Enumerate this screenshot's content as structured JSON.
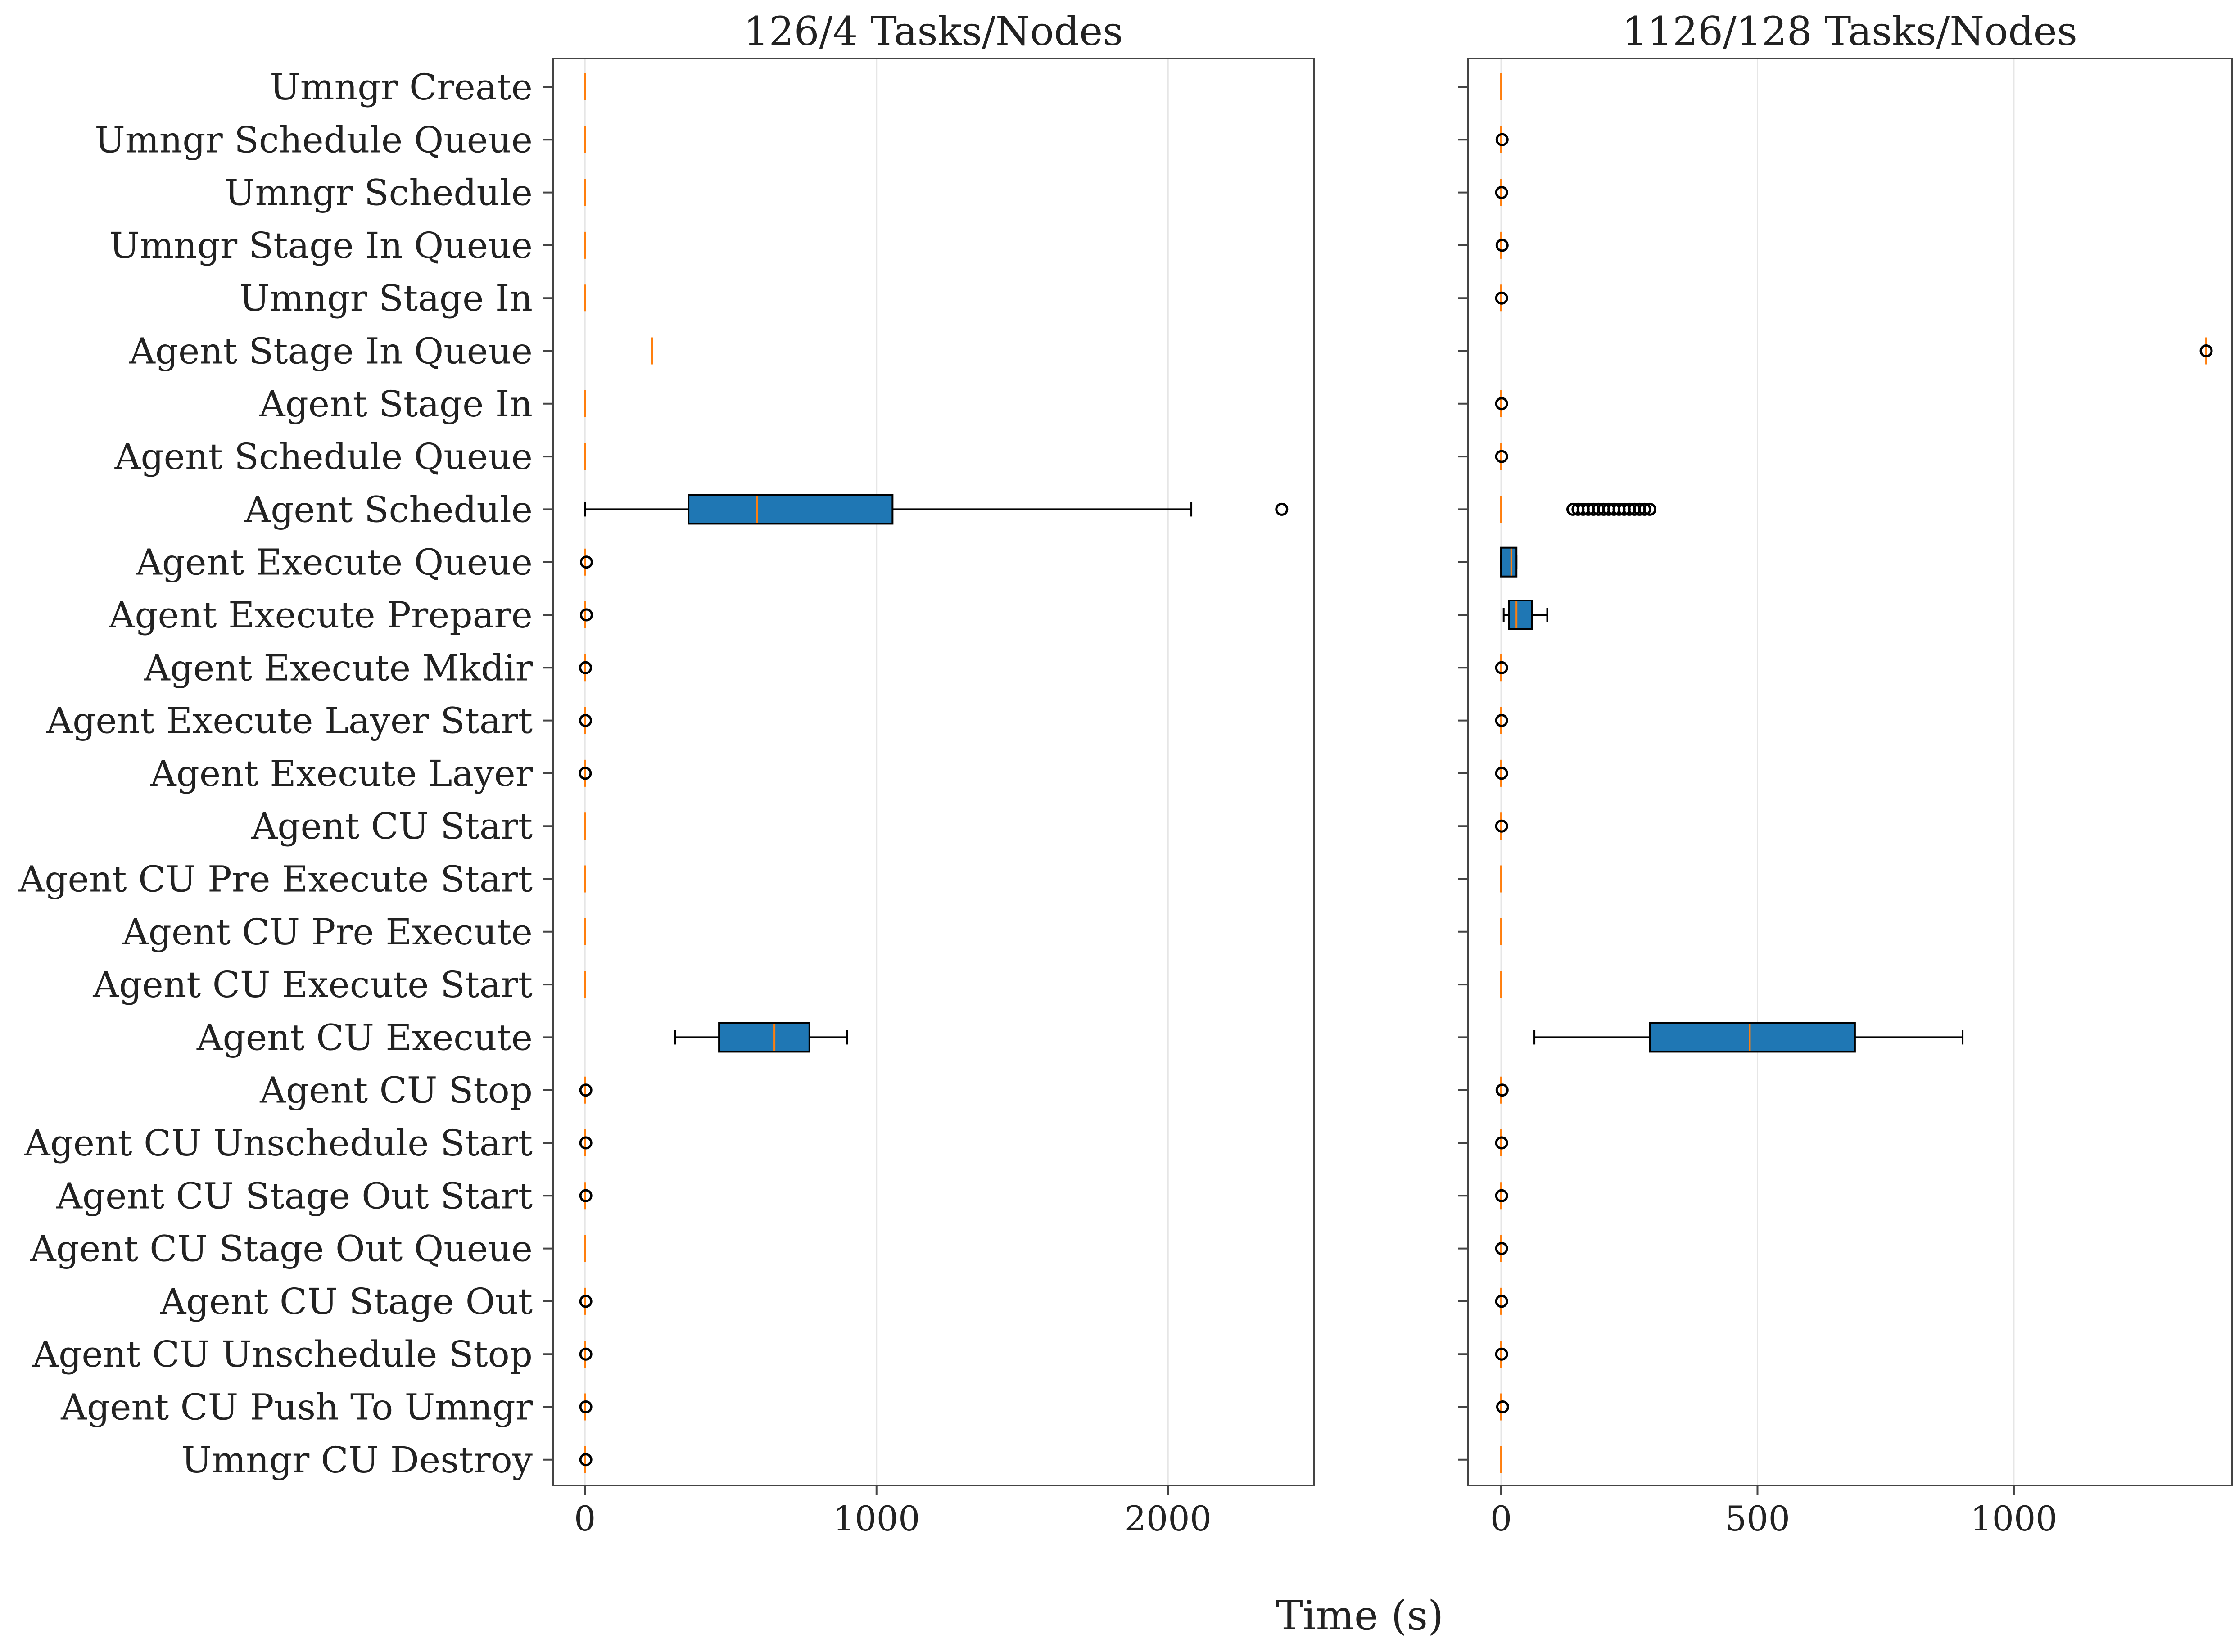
{
  "chart_data": {
    "type": "box",
    "xlabel": "Time (s)",
    "categories": [
      "Umngr Create",
      "Umngr Schedule Queue",
      "Umngr Schedule",
      "Umngr Stage In Queue",
      "Umngr Stage In",
      "Agent Stage In Queue",
      "Agent Stage In",
      "Agent Schedule Queue",
      "Agent Schedule",
      "Agent Execute Queue",
      "Agent Execute Prepare",
      "Agent Execute Mkdir",
      "Agent Execute Layer Start",
      "Agent Execute Layer",
      "Agent CU Start",
      "Agent CU Pre Execute Start",
      "Agent CU Pre Execute",
      "Agent CU Execute Start",
      "Agent CU Execute",
      "Agent CU Stop",
      "Agent CU Unschedule Start",
      "Agent CU Stage Out Start",
      "Agent CU Stage Out Queue",
      "Agent CU Stage Out",
      "Agent CU Unschedule Stop",
      "Agent CU Push To Umngr",
      "Umngr CU Destroy"
    ],
    "colors": {
      "box_fill": "#1f77b4",
      "median": "#ff7f0e",
      "outline": "#000000",
      "grid": "#e6e6e6",
      "frame": "#444444"
    },
    "panels": [
      {
        "title": "126/4 Tasks/Nodes",
        "xlim": [
          -110,
          2500
        ],
        "xticks": [
          0,
          1000,
          2000
        ],
        "grid": true,
        "boxes": [
          {
            "wlo": 1,
            "q1": 1,
            "med": 1,
            "q3": 1,
            "whi": 1,
            "outliers": []
          },
          {
            "wlo": 0.5,
            "q1": 0.5,
            "med": 0.5,
            "q3": 0.5,
            "whi": 0.5,
            "outliers": []
          },
          {
            "wlo": 0.5,
            "q1": 0.5,
            "med": 0.5,
            "q3": 0.5,
            "whi": 0.5,
            "outliers": []
          },
          {
            "wlo": 0,
            "q1": 0,
            "med": 0,
            "q3": 0,
            "whi": 0,
            "outliers": []
          },
          {
            "wlo": 0,
            "q1": 0,
            "med": 0,
            "q3": 0,
            "whi": 0,
            "outliers": []
          },
          {
            "wlo": 230,
            "q1": 230,
            "med": 230,
            "q3": 230,
            "whi": 230,
            "outliers": []
          },
          {
            "wlo": 0,
            "q1": 0,
            "med": 0,
            "q3": 0,
            "whi": 0,
            "outliers": []
          },
          {
            "wlo": 0,
            "q1": 0,
            "med": 0,
            "q3": 0,
            "whi": 0,
            "outliers": []
          },
          {
            "wlo": 0,
            "q1": 355,
            "med": 590,
            "q3": 1055,
            "whi": 2080,
            "outliers": [
              2390
            ]
          },
          {
            "wlo": 0,
            "q1": 0,
            "med": 0,
            "q3": 0,
            "whi": 0,
            "outliers": [
              5
            ]
          },
          {
            "wlo": 0,
            "q1": 0,
            "med": 0,
            "q3": 0,
            "whi": 0,
            "outliers": [
              5
            ]
          },
          {
            "wlo": 0,
            "q1": 0,
            "med": 0,
            "q3": 0,
            "whi": 0,
            "outliers": [
              2
            ]
          },
          {
            "wlo": 0,
            "q1": 0,
            "med": 0,
            "q3": 0,
            "whi": 0,
            "outliers": [
              2
            ]
          },
          {
            "wlo": 0,
            "q1": 0,
            "med": 0,
            "q3": 0,
            "whi": 0,
            "outliers": [
              1
            ]
          },
          {
            "wlo": 0,
            "q1": 0,
            "med": 0,
            "q3": 0,
            "whi": 0,
            "outliers": []
          },
          {
            "wlo": 0,
            "q1": 0,
            "med": 0,
            "q3": 0,
            "whi": 0,
            "outliers": []
          },
          {
            "wlo": 0,
            "q1": 0,
            "med": 0,
            "q3": 0,
            "whi": 0,
            "outliers": []
          },
          {
            "wlo": 0,
            "q1": 0,
            "med": 0,
            "q3": 0,
            "whi": 0,
            "outliers": []
          },
          {
            "wlo": 310,
            "q1": 460,
            "med": 650,
            "q3": 770,
            "whi": 900,
            "outliers": []
          },
          {
            "wlo": 0,
            "q1": 0,
            "med": 0,
            "q3": 0,
            "whi": 0,
            "outliers": [
              3
            ]
          },
          {
            "wlo": 0,
            "q1": 0,
            "med": 0,
            "q3": 0,
            "whi": 0,
            "outliers": [
              3
            ]
          },
          {
            "wlo": 0,
            "q1": 0,
            "med": 0,
            "q3": 0,
            "whi": 0,
            "outliers": [
              3
            ]
          },
          {
            "wlo": 0,
            "q1": 0,
            "med": 0,
            "q3": 0,
            "whi": 0,
            "outliers": []
          },
          {
            "wlo": 0,
            "q1": 0,
            "med": 0,
            "q3": 0,
            "whi": 0,
            "outliers": [
              3
            ]
          },
          {
            "wlo": 0,
            "q1": 0,
            "med": 0,
            "q3": 0,
            "whi": 0,
            "outliers": [
              3
            ]
          },
          {
            "wlo": 0,
            "q1": 0,
            "med": 0,
            "q3": 0,
            "whi": 0,
            "outliers": [
              3
            ]
          },
          {
            "wlo": 0,
            "q1": 0,
            "med": 0,
            "q3": 0,
            "whi": 0,
            "outliers": [
              3
            ]
          }
        ]
      },
      {
        "title": "1126/128 Tasks/Nodes",
        "xlim": [
          -65,
          1425
        ],
        "xticks": [
          0,
          500,
          1000
        ],
        "grid": true,
        "boxes": [
          {
            "wlo": 0,
            "q1": 0,
            "med": 0,
            "q3": 0,
            "whi": 0,
            "outliers": []
          },
          {
            "wlo": 0,
            "q1": 0,
            "med": 0,
            "q3": 0,
            "whi": 0,
            "outliers": [
              2
            ]
          },
          {
            "wlo": 0,
            "q1": 0,
            "med": 0,
            "q3": 0,
            "whi": 0,
            "outliers": [
              1
            ]
          },
          {
            "wlo": 0,
            "q1": 0,
            "med": 0,
            "q3": 0,
            "whi": 0,
            "outliers": [
              2
            ]
          },
          {
            "wlo": 0,
            "q1": 0,
            "med": 0,
            "q3": 0,
            "whi": 0,
            "outliers": [
              1
            ]
          },
          {
            "wlo": 1375,
            "q1": 1375,
            "med": 1375,
            "q3": 1375,
            "whi": 1375,
            "outliers": [
              1375
            ]
          },
          {
            "wlo": 0,
            "q1": 0,
            "med": 0,
            "q3": 0,
            "whi": 0,
            "outliers": [
              1
            ]
          },
          {
            "wlo": 0,
            "q1": 0,
            "med": 0,
            "q3": 0,
            "whi": 0,
            "outliers": [
              1
            ]
          },
          {
            "wlo": 0,
            "q1": 0,
            "med": 0,
            "q3": 0,
            "whi": 0,
            "outliers": [
              140,
              150,
              160,
              170,
              180,
              190,
              200,
              210,
              220,
              230,
              240,
              250,
              260,
              270,
              280,
              290
            ]
          },
          {
            "wlo": 0,
            "q1": 0,
            "med": 20,
            "q3": 30,
            "whi": 30,
            "outliers": []
          },
          {
            "wlo": 5,
            "q1": 15,
            "med": 30,
            "q3": 60,
            "whi": 90,
            "outliers": []
          },
          {
            "wlo": 0,
            "q1": 0,
            "med": 0,
            "q3": 0,
            "whi": 0,
            "outliers": [
              1
            ]
          },
          {
            "wlo": 0,
            "q1": 0,
            "med": 0,
            "q3": 0,
            "whi": 0,
            "outliers": [
              1
            ]
          },
          {
            "wlo": 0,
            "q1": 0,
            "med": 0,
            "q3": 0,
            "whi": 0,
            "outliers": [
              1
            ]
          },
          {
            "wlo": 0,
            "q1": 0,
            "med": 0,
            "q3": 0,
            "whi": 0,
            "outliers": [
              1
            ]
          },
          {
            "wlo": 0,
            "q1": 0,
            "med": 0,
            "q3": 0,
            "whi": 0,
            "outliers": []
          },
          {
            "wlo": 0,
            "q1": 0,
            "med": 0,
            "q3": 0,
            "whi": 0,
            "outliers": []
          },
          {
            "wlo": 0,
            "q1": 0,
            "med": 0,
            "q3": 0,
            "whi": 0,
            "outliers": []
          },
          {
            "wlo": 65,
            "q1": 290,
            "med": 485,
            "q3": 690,
            "whi": 900,
            "outliers": []
          },
          {
            "wlo": 0,
            "q1": 0,
            "med": 0,
            "q3": 0,
            "whi": 0,
            "outliers": [
              2
            ]
          },
          {
            "wlo": 0,
            "q1": 0,
            "med": 0,
            "q3": 0,
            "whi": 0,
            "outliers": [
              1
            ]
          },
          {
            "wlo": 0,
            "q1": 0,
            "med": 0,
            "q3": 0,
            "whi": 0,
            "outliers": [
              1
            ]
          },
          {
            "wlo": 0,
            "q1": 0,
            "med": 0,
            "q3": 0,
            "whi": 0,
            "outliers": [
              1
            ]
          },
          {
            "wlo": 0,
            "q1": 0,
            "med": 0,
            "q3": 0,
            "whi": 0,
            "outliers": [
              1
            ]
          },
          {
            "wlo": 0,
            "q1": 0,
            "med": 0,
            "q3": 0,
            "whi": 0,
            "outliers": [
              1
            ]
          },
          {
            "wlo": 0,
            "q1": 0,
            "med": 0,
            "q3": 0,
            "whi": 0,
            "outliers": [
              3
            ]
          },
          {
            "wlo": 0,
            "q1": 0,
            "med": 0,
            "q3": 0,
            "whi": 0,
            "outliers": []
          }
        ]
      }
    ]
  }
}
